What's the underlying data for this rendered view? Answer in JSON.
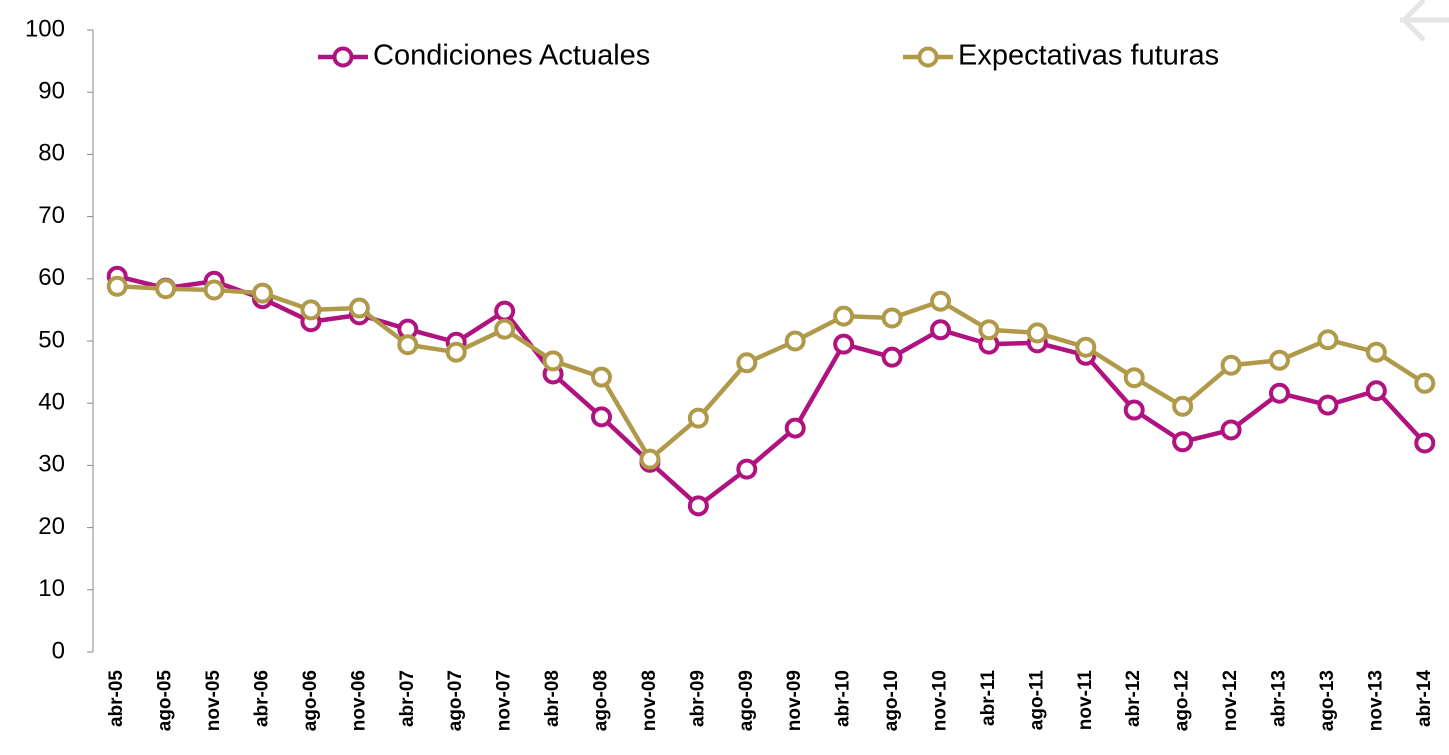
{
  "chart_data": {
    "type": "line",
    "categories": [
      "abr-05",
      "ago-05",
      "nov-05",
      "abr-06",
      "ago-06",
      "nov-06",
      "abr-07",
      "ago-07",
      "nov-07",
      "abr-08",
      "ago-08",
      "nov-08",
      "abr-09",
      "ago-09",
      "nov-09",
      "abr-10",
      "ago-10",
      "nov-10",
      "abr-11",
      "ago-11",
      "nov-11",
      "abr-12",
      "ago-12",
      "nov-12",
      "abr-13",
      "ago-13",
      "nov-13",
      "abr-14"
    ],
    "series": [
      {
        "name": "Condiciones Actuales",
        "color": "#b0127f",
        "values": [
          60.4,
          58.5,
          59.6,
          56.8,
          53.1,
          54.2,
          51.9,
          49.8,
          54.8,
          44.7,
          37.8,
          30.5,
          23.5,
          29.4,
          36.0,
          49.5,
          47.4,
          51.8,
          49.5,
          49.7,
          47.7,
          38.9,
          33.8,
          35.7,
          41.6,
          39.7,
          42.0,
          33.6
        ]
      },
      {
        "name": "Expectativas futuras",
        "color": "#b09a4a",
        "values": [
          58.8,
          58.4,
          58.2,
          57.7,
          55.0,
          55.3,
          49.4,
          48.2,
          51.9,
          46.8,
          44.2,
          31.0,
          37.6,
          46.5,
          50.0,
          54.0,
          53.7,
          56.4,
          51.8,
          51.3,
          49.0,
          44.1,
          39.5,
          46.1,
          46.9,
          50.2,
          48.2,
          43.2
        ]
      }
    ],
    "ylim": [
      0,
      100
    ],
    "yticks": [
      0,
      10,
      20,
      30,
      40,
      50,
      60,
      70,
      80,
      90,
      100
    ],
    "grid": false,
    "legend": "top"
  }
}
